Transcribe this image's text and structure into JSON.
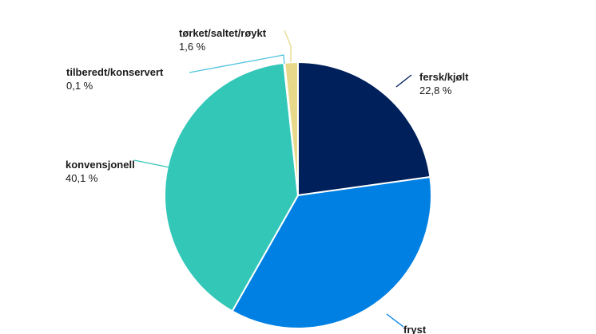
{
  "chart_data": {
    "type": "pie",
    "title": "",
    "start_angle_deg": 0,
    "direction": "clockwise",
    "legend": "none",
    "slices": [
      {
        "label": "fersk/kjølt",
        "value_text": "22,8 %",
        "value": 22.8,
        "color": "#00205b"
      },
      {
        "label": "fryst",
        "value_text": "",
        "value": 35.4,
        "color": "#0080e3"
      },
      {
        "label": "konvensjonell",
        "value_text": "40,1 %",
        "value": 40.1,
        "color": "#33c7b8"
      },
      {
        "label": "tilberedt/konservert",
        "value_text": "0,1 %",
        "value": 0.1,
        "color": "#4fc3e0"
      },
      {
        "label": "tørket/saltet/røykt",
        "value_text": "1,6 %",
        "value": 1.6,
        "color": "#e8d98a"
      }
    ]
  }
}
